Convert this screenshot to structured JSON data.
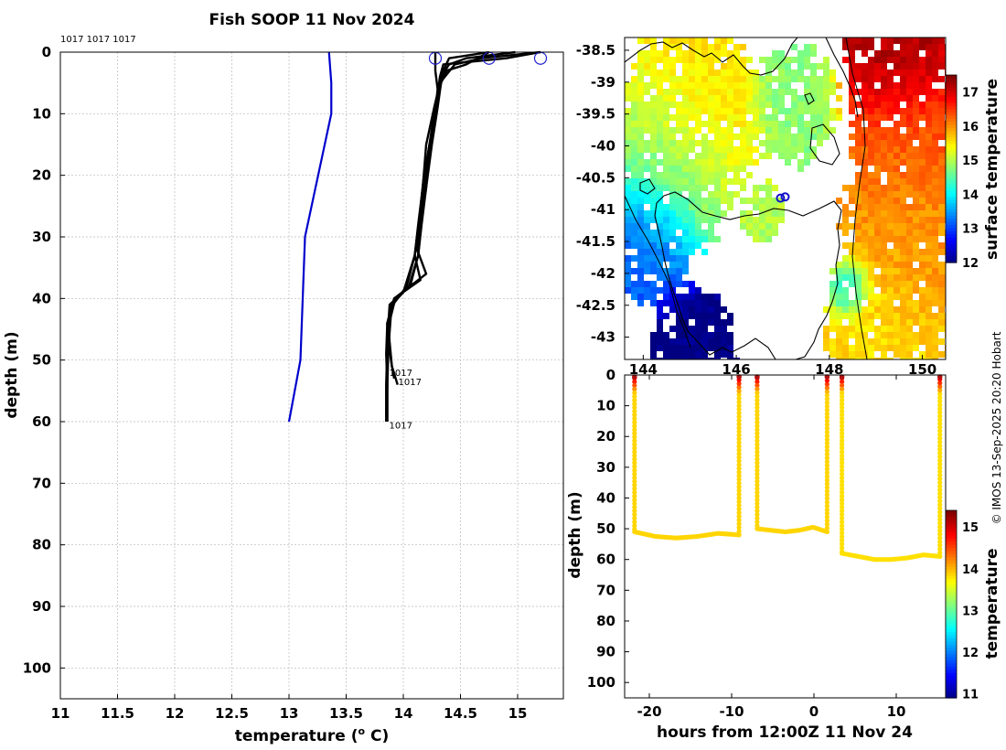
{
  "title": "Fish SOOP 11 Nov 2024",
  "credit": "© IMOS 13-Sep-2025 20:20 Hobart",
  "colors": {
    "profile_line": "#000000",
    "reference_line": "#0000cc",
    "start_marker": "#2222cc",
    "grid": "#b8b8b8",
    "land_coast": "#000000"
  },
  "chart_data": [
    {
      "id": "profile",
      "type": "line",
      "title": "Fish SOOP 11 Nov 2024",
      "xlabel": "temperature (",
      "xlabel_super": "o",
      "xlabel_end": " C)",
      "ylabel": "depth (m)",
      "xlim": [
        11,
        15.4
      ],
      "ylim": [
        0,
        105
      ],
      "y_reversed": true,
      "grid": true,
      "xticks": [
        "11",
        "11.5",
        "12",
        "12.5",
        "13",
        "13.5",
        "14",
        "14.5",
        "15"
      ],
      "yticks": [
        "0",
        "10",
        "20",
        "30",
        "40",
        "50",
        "60",
        "70",
        "80",
        "90",
        "100"
      ],
      "top_labels": "1017 1017 1017",
      "reference": {
        "name": "climatology",
        "temp": [
          13.35,
          13.37,
          13.37,
          13.14,
          13.1,
          13.0
        ],
        "depth": [
          0,
          5,
          10,
          30,
          50,
          60
        ]
      },
      "series": [
        {
          "name": "1017",
          "temp": [
            15.2,
            14.9,
            14.35,
            14.32,
            14.3,
            14.27,
            14.2,
            14.16,
            14.13,
            14.05,
            13.88,
            13.87,
            13.88,
            13.9,
            13.92
          ],
          "depth": [
            0,
            1,
            2,
            4,
            7,
            12,
            20,
            27,
            33,
            38,
            41,
            44,
            47,
            51,
            53
          ]
        },
        {
          "name": "1017",
          "temp": [
            14.98,
            14.55,
            14.4,
            14.33,
            14.3,
            14.26,
            14.18,
            14.14,
            14.1,
            14.0,
            13.9,
            13.86,
            13.87,
            13.9,
            13.95
          ],
          "depth": [
            0,
            1,
            2,
            4,
            7,
            12,
            20,
            27,
            33,
            39,
            41,
            44,
            47,
            51,
            54
          ]
        },
        {
          "name": "1017",
          "temp": [
            15.2,
            14.68,
            14.45,
            14.32,
            14.27,
            14.2,
            14.17,
            14.13,
            14.1,
            14.15,
            13.92,
            13.86,
            13.85,
            13.86,
            13.85
          ],
          "depth": [
            0,
            1,
            2,
            5,
            9,
            15,
            22,
            28,
            33,
            37,
            40,
            44,
            49,
            54,
            59
          ]
        },
        {
          "name": "1017",
          "temp": [
            14.75,
            14.55,
            14.38,
            14.33,
            14.3,
            14.25,
            14.2,
            14.15,
            14.1,
            14.03,
            13.91,
            13.86,
            13.86,
            13.86,
            13.86
          ],
          "depth": [
            0,
            2,
            3,
            5,
            9,
            15,
            22,
            28,
            33,
            38,
            41,
            44,
            50,
            55,
            60
          ]
        },
        {
          "name": "1017",
          "temp": [
            14.75,
            14.4,
            14.35,
            14.32,
            14.27,
            14.22,
            14.18,
            14.15,
            14.12,
            14.2,
            13.92,
            13.88,
            13.86,
            13.85,
            13.85
          ],
          "depth": [
            0,
            1,
            3,
            6,
            10,
            16,
            22,
            28,
            32,
            36,
            40,
            43,
            48,
            54,
            60
          ]
        },
        {
          "name": "1017",
          "temp": [
            14.28,
            14.28,
            14.28,
            14.3,
            14.28,
            14.22,
            14.2,
            14.16,
            14.13,
            14.06,
            13.93,
            13.89,
            13.87,
            13.86,
            13.86
          ],
          "depth": [
            0,
            1,
            3,
            6,
            10,
            16,
            22,
            28,
            33,
            38,
            40,
            43,
            48,
            54,
            60
          ]
        }
      ],
      "start_markers": [
        {
          "temp": 14.28,
          "depth": 1
        },
        {
          "temp": 14.75,
          "depth": 1
        },
        {
          "temp": 15.2,
          "depth": 1
        }
      ],
      "end_labels": [
        {
          "text": "1017",
          "temp": 13.86,
          "depth": 52
        },
        {
          "text": "1017",
          "temp": 13.94,
          "depth": 53.5
        },
        {
          "text": "1017",
          "temp": 13.86,
          "depth": 60.5
        }
      ]
    },
    {
      "id": "map",
      "type": "heatmap",
      "colorbar_label": "surface temperature",
      "colorbar_ticks": [
        "17",
        "16",
        "15",
        "14",
        "13",
        "12"
      ],
      "colorbar_range": [
        12,
        17.5
      ],
      "lat_ticks": [
        "-38.5",
        "-39",
        "-39.5",
        "-40",
        "-40.5",
        "-41",
        "-41.5",
        "-42",
        "-42.5",
        "-43"
      ],
      "lon_ticks": [
        "144",
        "146",
        "148",
        "150"
      ],
      "lat_range": [
        -43.35,
        -38.3
      ],
      "lon_range": [
        143.6,
        150.5
      ],
      "sst_patches": [
        {
          "temp": 15.6,
          "lat": -39.5,
          "lon": 145.0,
          "size": 1.3
        },
        {
          "temp": 14.6,
          "lat": -40.3,
          "lon": 144.5,
          "size": 1.2
        },
        {
          "temp": 13.2,
          "lat": -41.4,
          "lon": 144.0,
          "size": 0.9
        },
        {
          "temp": 12.0,
          "lat": -43.1,
          "lon": 145.0,
          "size": 0.8
        },
        {
          "temp": 14.8,
          "lat": -39.3,
          "lon": 147.2,
          "size": 0.8
        },
        {
          "temp": 17.3,
          "lat": -38.6,
          "lon": 149.6,
          "size": 1.1
        },
        {
          "temp": 16.3,
          "lat": -39.8,
          "lon": 149.8,
          "size": 1.2
        },
        {
          "temp": 16.0,
          "lat": -41.5,
          "lon": 149.8,
          "size": 1.4
        },
        {
          "temp": 15.6,
          "lat": -42.8,
          "lon": 149.2,
          "size": 1.1
        },
        {
          "temp": 13.9,
          "lat": -42.2,
          "lon": 148.4,
          "size": 0.4
        },
        {
          "temp": 15.0,
          "lat": -41.0,
          "lon": 146.5,
          "size": 0.4
        }
      ],
      "cast_positions": [
        {
          "lat": -40.82,
          "lon": 146.95
        },
        {
          "lat": -40.8,
          "lon": 147.05
        }
      ]
    },
    {
      "id": "timeseries",
      "type": "scatter",
      "xlabel": "hours from 12:00Z 11 Nov 24",
      "ylabel": "depth (m)",
      "xlim": [
        -23,
        16
      ],
      "ylim": [
        0,
        105
      ],
      "y_reversed": true,
      "xticks": [
        "-20",
        "-10",
        "0",
        "10"
      ],
      "yticks": [
        "0",
        "10",
        "20",
        "30",
        "40",
        "50",
        "60",
        "70",
        "80",
        "90",
        "100"
      ],
      "colorbar_label": "temperature",
      "colorbar_ticks": [
        "15",
        "14",
        "13",
        "12",
        "11"
      ],
      "colorbar_range": [
        10.9,
        15.4
      ],
      "dives": [
        {
          "t_down": -21.8,
          "t_up": -9.1,
          "bottom_depth": [
            51,
            52.5,
            53,
            52.5,
            51.5,
            52
          ],
          "surface_temp": 15.2,
          "bottom_temp": 13.9
        },
        {
          "t_down": -6.9,
          "t_up": 1.6,
          "bottom_depth": [
            50,
            50.5,
            51,
            50.5,
            49.5,
            51
          ],
          "surface_temp": 15.2,
          "bottom_temp": 13.9
        },
        {
          "t_down": 3.4,
          "t_up": 15.3,
          "bottom_depth": [
            58,
            59,
            60,
            60,
            59.5,
            58.5,
            59
          ],
          "surface_temp": 15.2,
          "bottom_temp": 13.85
        }
      ]
    }
  ]
}
